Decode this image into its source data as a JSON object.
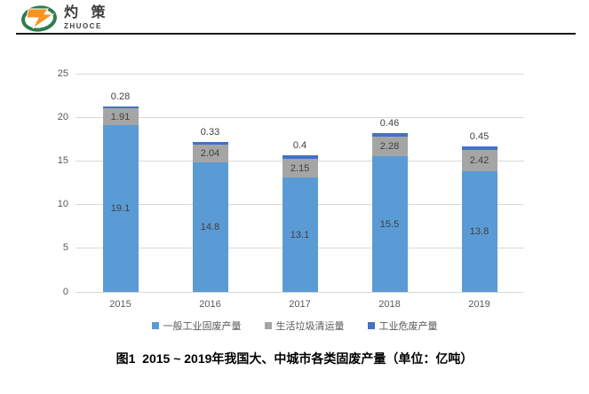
{
  "logo": {
    "cn": "灼 策",
    "en": "ZHUOCE",
    "mark_colors": {
      "ring_green": "#2e7d4f",
      "z_orange": "#f7941d"
    }
  },
  "chart_data": {
    "type": "bar",
    "stacked": true,
    "title": "",
    "xlabel": "",
    "ylabel": "",
    "categories": [
      "2015",
      "2016",
      "2017",
      "2018",
      "2019"
    ],
    "series": [
      {
        "name": "一般工业固废产量",
        "color": "#5b9bd5",
        "label_placement": "inside",
        "values": [
          19.1,
          14.8,
          13.1,
          15.5,
          13.8
        ]
      },
      {
        "name": "生活垃圾清运量",
        "color": "#a5a5a5",
        "label_placement": "inside",
        "values": [
          1.91,
          2.04,
          2.15,
          2.28,
          2.42
        ]
      },
      {
        "name": "工业危废产量",
        "color": "#4472c4",
        "label_placement": "above",
        "values": [
          0.28,
          0.33,
          0.4,
          0.46,
          0.45
        ]
      }
    ],
    "y_ticks": [
      0,
      5,
      10,
      15,
      20,
      25
    ],
    "ylim": [
      0,
      25
    ],
    "grid": true,
    "legend_position": "bottom",
    "colors": {
      "gridline": "#d9d9d9",
      "axis_text": "#595959",
      "data_label_text": "#404040"
    }
  },
  "caption": {
    "text": "图1  2015 ~ 2019年我国大、中城市各类固废产量（单位：亿吨）"
  }
}
